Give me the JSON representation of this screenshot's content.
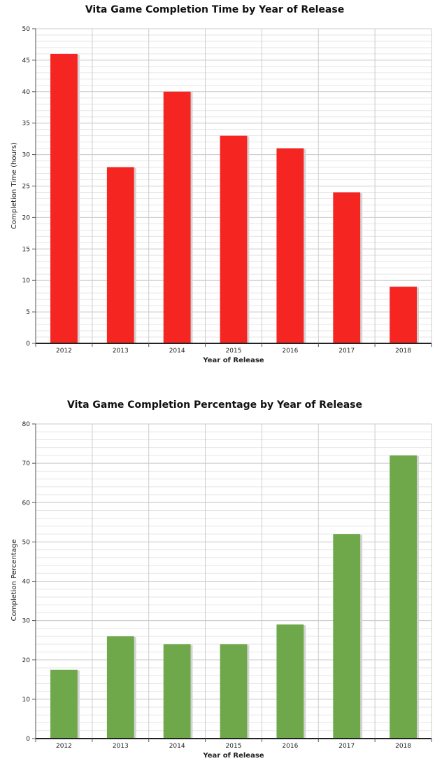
{
  "chart_data": [
    {
      "type": "bar",
      "title": "Vita Game Completion Time by Year of Release",
      "xlabel": "Year of Release",
      "ylabel": "Completion Time (hours)",
      "categories": [
        "2012",
        "2013",
        "2014",
        "2015",
        "2016",
        "2017",
        "2018"
      ],
      "values": [
        46,
        28,
        40,
        33,
        31,
        24,
        9
      ],
      "ylim": [
        0,
        50
      ],
      "yticks": [
        "0",
        "5",
        "10",
        "15",
        "20",
        "25",
        "30",
        "35",
        "40",
        "45",
        "50"
      ],
      "color": "#f52522",
      "grid": true,
      "legend": "none"
    },
    {
      "type": "bar",
      "title": "Vita Game Completion Percentage by Year of Release",
      "xlabel": "Year of Release",
      "ylabel": "Completion Percentage",
      "categories": [
        "2012",
        "2013",
        "2014",
        "2015",
        "2016",
        "2017",
        "2018"
      ],
      "values": [
        17.5,
        26,
        24,
        24,
        29,
        52,
        72
      ],
      "ylim": [
        0,
        80
      ],
      "yticks": [
        "0",
        "10",
        "20",
        "30",
        "40",
        "50",
        "60",
        "70",
        "80"
      ],
      "color": "#6fa84a",
      "grid": true,
      "legend": "none"
    }
  ]
}
